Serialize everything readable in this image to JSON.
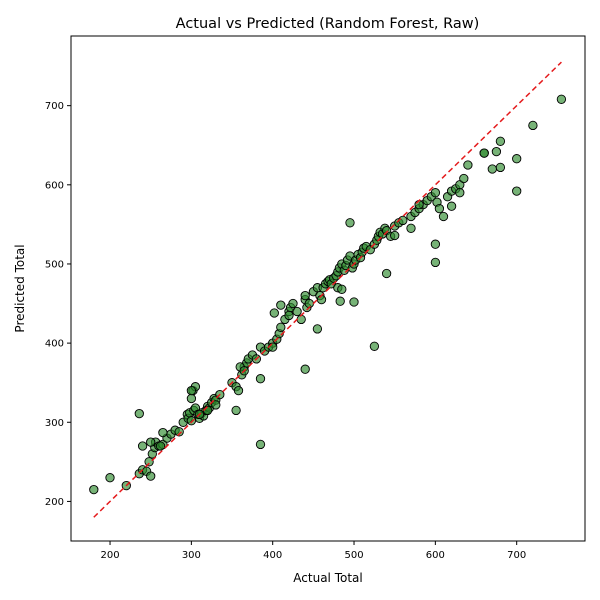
{
  "chart_data": {
    "type": "scatter",
    "title": "Actual vs Predicted (Random Forest, Raw)",
    "xlabel": "Actual Total",
    "ylabel": "Predicted Total",
    "xlim": [
      152,
      784
    ],
    "ylim": [
      150,
      788
    ],
    "xticks": [
      200,
      300,
      400,
      500,
      600,
      700
    ],
    "yticks": [
      200,
      300,
      400,
      500,
      600,
      700
    ],
    "grid": false,
    "legend": "none",
    "colors": {
      "point_fill": "#2e8b2e",
      "point_edge": "#000000",
      "reference_line": "#e41a1c"
    },
    "reference_line": {
      "from": [
        180,
        180
      ],
      "to": [
        755,
        755
      ],
      "style": "dashed"
    },
    "series": [
      {
        "x": [
          180,
          200,
          220,
          236,
          240,
          245,
          250,
          252,
          255,
          256,
          260,
          265,
          270,
          275,
          280,
          285,
          290,
          295,
          296,
          298,
          300,
          303,
          305,
          308,
          310,
          313,
          315,
          318,
          320,
          322,
          325,
          328,
          330,
          335,
          236,
          240,
          248,
          250,
          262,
          265,
          300,
          302,
          305,
          310,
          320,
          330,
          350,
          355,
          358,
          362,
          365,
          368,
          370,
          375,
          380,
          385,
          390,
          395,
          400,
          405,
          408,
          410,
          415,
          420,
          422,
          425,
          430,
          435,
          440,
          442,
          445,
          450,
          455,
          458,
          460,
          462,
          465,
          468,
          470,
          472,
          475,
          478,
          480,
          482,
          485,
          488,
          490,
          492,
          495,
          498,
          500,
          502,
          505,
          508,
          510,
          512,
          515,
          520,
          525,
          528,
          530,
          532,
          535,
          538,
          540,
          545,
          550,
          555,
          560,
          570,
          575,
          580,
          585,
          590,
          595,
          600,
          602,
          605,
          610,
          615,
          620,
          625,
          630,
          635,
          640,
          660,
          670,
          675,
          680,
          700,
          720,
          755,
          300,
          355,
          360,
          365,
          385,
          400,
          402,
          410,
          420,
          440,
          455,
          480,
          483,
          485,
          495,
          500,
          540,
          550,
          570,
          580,
          600,
          620,
          630,
          660,
          680,
          700,
          385,
          440,
          525,
          600
        ],
        "y": [
          215,
          230,
          220,
          235,
          240,
          238,
          232,
          260,
          268,
          275,
          270,
          272,
          280,
          285,
          290,
          288,
          300,
          310,
          305,
          312,
          302,
          315,
          318,
          310,
          305,
          312,
          308,
          315,
          320,
          318,
          325,
          330,
          328,
          335,
          311,
          270,
          250,
          275,
          270,
          287,
          330,
          340,
          345,
          310,
          315,
          322,
          350,
          345,
          340,
          360,
          370,
          375,
          380,
          385,
          380,
          395,
          390,
          395,
          400,
          405,
          412,
          420,
          430,
          440,
          445,
          450,
          440,
          430,
          455,
          445,
          450,
          465,
          470,
          460,
          455,
          470,
          475,
          478,
          480,
          475,
          482,
          485,
          490,
          495,
          500,
          492,
          498,
          505,
          510,
          495,
          500,
          505,
          512,
          508,
          515,
          520,
          522,
          518,
          525,
          530,
          535,
          540,
          538,
          545,
          542,
          535,
          548,
          552,
          555,
          560,
          565,
          570,
          575,
          580,
          585,
          590,
          578,
          570,
          560,
          585,
          592,
          595,
          600,
          608,
          625,
          640,
          620,
          642,
          655,
          633,
          675,
          708,
          340,
          315,
          370,
          365,
          355,
          395,
          438,
          448,
          435,
          460,
          418,
          470,
          453,
          468,
          552,
          452,
          488,
          536,
          545,
          575,
          502,
          573,
          590,
          640,
          622,
          592,
          272,
          367,
          396,
          525
        ]
      }
    ]
  }
}
